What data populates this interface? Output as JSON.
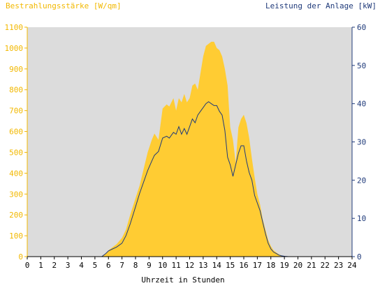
{
  "colors": {
    "irradiance": "#ffcc33",
    "power": "#1f3a7a",
    "plot_background": "#dcdcdc",
    "left_axis_text": "#f2b800",
    "right_axis_text": "#1f3a7a"
  },
  "chart_data": {
    "type": "area",
    "title_left": "Bestrahlungsstärke [W/qm]",
    "title_right": "Leistung der Anlage [kW]",
    "xlabel": "Uhrzeit in Stunden",
    "xlim": [
      0,
      24
    ],
    "ylim_left": [
      0,
      1100
    ],
    "ylim_right": [
      0,
      60
    ],
    "x_ticks": [
      "0",
      "1",
      "2",
      "3",
      "4",
      "5",
      "6",
      "7",
      "8",
      "9",
      "10",
      "11",
      "12",
      "13",
      "14",
      "15",
      "16",
      "17",
      "18",
      "19",
      "20",
      "21",
      "22",
      "23",
      "24"
    ],
    "y_left_ticks": [
      "0",
      "100",
      "200",
      "300",
      "400",
      "500",
      "600",
      "700",
      "800",
      "900",
      "1000",
      "1100"
    ],
    "y_right_ticks": [
      "0",
      "10",
      "20",
      "30",
      "40",
      "50",
      "60"
    ],
    "grid": false,
    "series": [
      {
        "name": "Bestrahlungsstärke [W/qm]",
        "axis": "left",
        "style": "area",
        "x": [
          0,
          5.5,
          5.8,
          6.0,
          6.3,
          6.6,
          7.0,
          7.3,
          7.6,
          8.0,
          8.3,
          8.6,
          8.9,
          9.2,
          9.4,
          9.7,
          10.0,
          10.3,
          10.5,
          10.8,
          11.0,
          11.2,
          11.4,
          11.6,
          11.8,
          12.0,
          12.2,
          12.4,
          12.6,
          12.8,
          13.0,
          13.2,
          13.4,
          13.6,
          13.8,
          14.0,
          14.2,
          14.4,
          14.6,
          14.8,
          15.0,
          15.2,
          15.4,
          15.6,
          15.8,
          16.0,
          16.2,
          16.4,
          16.6,
          16.8,
          17.0,
          17.2,
          17.4,
          17.6,
          17.8,
          18.0,
          18.2,
          18.4,
          18.6,
          18.8,
          19.0,
          19.3,
          24
        ],
        "values": [
          0,
          0,
          15,
          30,
          45,
          60,
          90,
          130,
          200,
          280,
          340,
          420,
          500,
          560,
          590,
          560,
          710,
          730,
          720,
          760,
          700,
          760,
          740,
          780,
          740,
          760,
          820,
          830,
          800,
          880,
          960,
          1010,
          1020,
          1030,
          1030,
          1000,
          990,
          960,
          900,
          820,
          620,
          560,
          450,
          620,
          660,
          680,
          640,
          570,
          470,
          380,
          300,
          250,
          180,
          130,
          80,
          50,
          30,
          20,
          10,
          5,
          2,
          0,
          0
        ]
      },
      {
        "name": "Leistung der Anlage [kW]",
        "axis": "right",
        "style": "line",
        "x": [
          0,
          5.5,
          5.8,
          6.0,
          6.3,
          6.6,
          7.0,
          7.3,
          7.6,
          8.0,
          8.3,
          8.6,
          8.9,
          9.2,
          9.4,
          9.7,
          10.0,
          10.3,
          10.5,
          10.8,
          11.0,
          11.2,
          11.4,
          11.6,
          11.8,
          12.0,
          12.2,
          12.4,
          12.6,
          12.8,
          13.0,
          13.2,
          13.4,
          13.6,
          13.8,
          14.0,
          14.2,
          14.4,
          14.6,
          14.8,
          15.0,
          15.2,
          15.4,
          15.6,
          15.8,
          16.0,
          16.2,
          16.4,
          16.6,
          16.8,
          17.0,
          17.2,
          17.4,
          17.6,
          17.8,
          18.0,
          18.2,
          18.4,
          18.6,
          18.8,
          19.0,
          19.3,
          24
        ],
        "values": [
          0,
          0,
          0.8,
          1.5,
          2.0,
          2.5,
          3.5,
          5.5,
          8.5,
          13,
          16.5,
          19.5,
          22.5,
          25,
          26.5,
          27.5,
          31,
          31.5,
          31,
          32.5,
          32,
          34,
          32,
          33.5,
          32,
          34,
          36,
          35,
          37,
          38,
          39,
          40,
          40.5,
          40,
          39.5,
          39.5,
          38,
          37,
          33,
          26,
          24,
          21,
          24,
          27,
          29,
          29,
          25,
          22,
          20,
          16,
          14,
          12,
          9,
          6,
          3.5,
          2,
          1.2,
          0.8,
          0.4,
          0.2,
          0.1,
          0,
          0
        ]
      }
    ]
  }
}
